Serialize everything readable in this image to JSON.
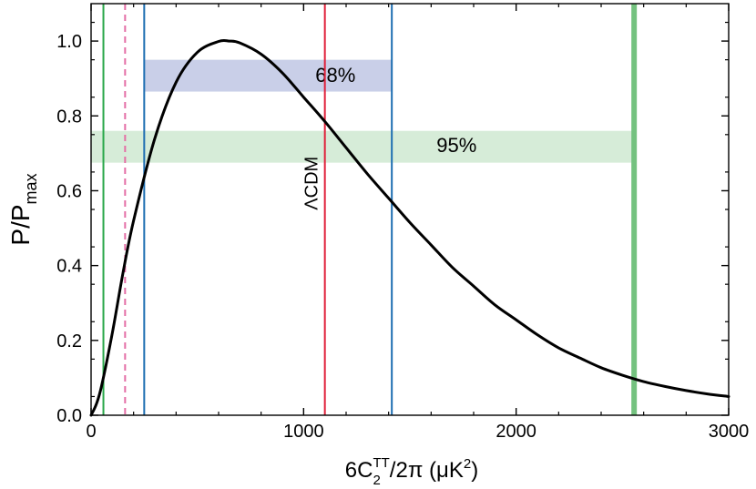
{
  "chart_data": {
    "type": "line",
    "x": [
      0,
      25,
      50,
      100,
      150,
      200,
      300,
      400,
      500,
      600,
      650,
      700,
      800,
      900,
      1000,
      1100,
      1200,
      1300,
      1400,
      1500,
      1600,
      1700,
      1800,
      1900,
      2000,
      2100,
      2200,
      2300,
      2400,
      2500,
      2600,
      2700,
      2800,
      2900,
      3000
    ],
    "series": [
      {
        "values": [
          0.0,
          0.03,
          0.08,
          0.22,
          0.38,
          0.52,
          0.74,
          0.89,
          0.97,
          0.999,
          1.0,
          0.995,
          0.965,
          0.915,
          0.85,
          0.785,
          0.715,
          0.645,
          0.58,
          0.515,
          0.455,
          0.395,
          0.345,
          0.295,
          0.255,
          0.215,
          0.18,
          0.153,
          0.127,
          0.107,
          0.09,
          0.077,
          0.066,
          0.057,
          0.05
        ],
        "color": "#000000"
      }
    ],
    "xlim": [
      0,
      3000
    ],
    "ylim": [
      0,
      1.1
    ],
    "x_ticks": [
      0,
      1000,
      2000,
      3000
    ],
    "x_tick_labels": [
      "0",
      "1000",
      "2000",
      "3000"
    ],
    "y_ticks": [
      0.0,
      0.2,
      0.4,
      0.6,
      0.8,
      1.0
    ],
    "y_tick_labels": [
      "0.0",
      "0.2",
      "0.4",
      "0.6",
      "0.8",
      "1.0"
    ],
    "xlabel": {
      "main": "6C",
      "sub": "2",
      "sup": "TT",
      "rest": "/2π (μK",
      "rest_sup": "2",
      "close": ")"
    },
    "ylabel": {
      "main": "P/P",
      "sub": "max"
    },
    "bands": [
      {
        "label": "68%",
        "x0": 250,
        "x1": 1415,
        "y0": 0.865,
        "y1": 0.95,
        "color": "#c9cfe8",
        "label_x": 1150,
        "label_y": 0.905
      },
      {
        "label": "95%",
        "x0": 0,
        "x1": 2555,
        "y0": 0.675,
        "y1": 0.76,
        "color": "#d6ecd8",
        "label_x": 1720,
        "label_y": 0.717
      }
    ],
    "vlines": [
      {
        "x": 58,
        "color": "#2aa84a",
        "style": "solid",
        "width": 2
      },
      {
        "x": 160,
        "color": "#e46fa6",
        "style": "dashed",
        "width": 2
      },
      {
        "x": 250,
        "color": "#1f6fb2",
        "style": "solid",
        "width": 2
      },
      {
        "x": 1100,
        "color": "#e0203a",
        "style": "solid",
        "width": 2,
        "label": "ΛCDM"
      },
      {
        "x": 1415,
        "color": "#1f6fb2",
        "style": "solid",
        "width": 2
      },
      {
        "x": 2555,
        "color": "#74c27f",
        "style": "solid",
        "width": 6
      }
    ],
    "grid": false
  }
}
